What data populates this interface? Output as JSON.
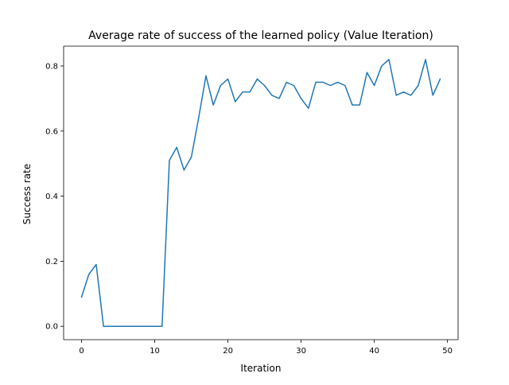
{
  "chart_data": {
    "type": "line",
    "title": "Average rate of success of the learned policy (Value Iteration)",
    "xlabel": "Iteration",
    "ylabel": "Success rate",
    "xlim": [
      -2.45,
      51.45
    ],
    "ylim": [
      -0.041,
      0.861
    ],
    "x_ticks": [
      0,
      10,
      20,
      30,
      40,
      50
    ],
    "y_ticks": [
      0.0,
      0.2,
      0.4,
      0.6,
      0.8
    ],
    "x_tick_labels": [
      "0",
      "10",
      "20",
      "30",
      "40",
      "50"
    ],
    "y_tick_labels": [
      "0.0",
      "0.2",
      "0.4",
      "0.6",
      "0.8"
    ],
    "grid": false,
    "legend": "none",
    "series": [
      {
        "color": "#1f77b4",
        "x": [
          0,
          1,
          2,
          3,
          4,
          5,
          6,
          7,
          8,
          9,
          10,
          11,
          12,
          13,
          14,
          15,
          16,
          17,
          18,
          19,
          20,
          21,
          22,
          23,
          24,
          25,
          26,
          27,
          28,
          29,
          30,
          31,
          32,
          33,
          34,
          35,
          36,
          37,
          38,
          39,
          40,
          41,
          42,
          43,
          44,
          45,
          46,
          47,
          48,
          49
        ],
        "values": [
          0.09,
          0.16,
          0.19,
          0.0,
          0.0,
          0.0,
          0.0,
          0.0,
          0.0,
          0.0,
          0.0,
          0.0,
          0.51,
          0.55,
          0.48,
          0.52,
          0.64,
          0.77,
          0.68,
          0.74,
          0.76,
          0.69,
          0.72,
          0.72,
          0.76,
          0.74,
          0.71,
          0.7,
          0.75,
          0.74,
          0.7,
          0.67,
          0.75,
          0.75,
          0.74,
          0.75,
          0.74,
          0.68,
          0.68,
          0.78,
          0.74,
          0.8,
          0.82,
          0.71,
          0.72,
          0.71,
          0.74,
          0.82,
          0.71,
          0.76
        ]
      }
    ]
  }
}
